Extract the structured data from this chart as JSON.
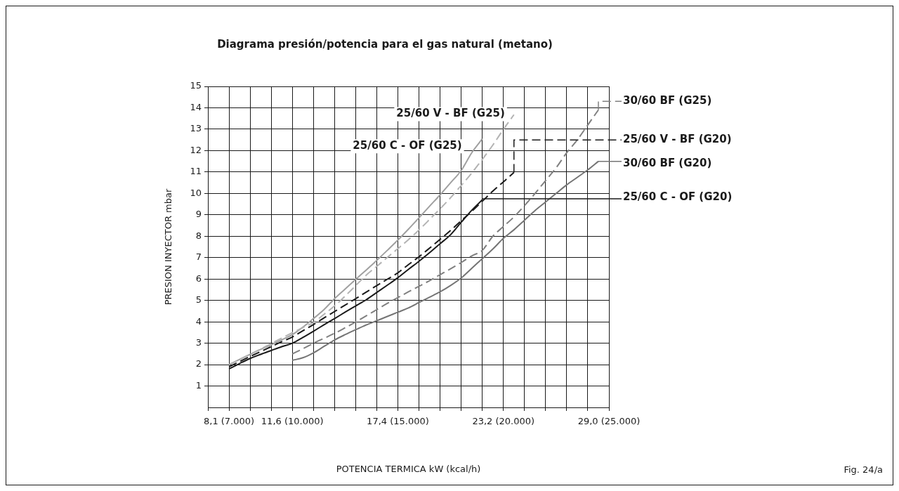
{
  "chart_data": {
    "type": "line",
    "title": "Diagrama presión/potencia para el gas natural (metano)",
    "xlabel": "POTENCIA TERMICA kW (kcal/h)",
    "ylabel": "PRESION INYECTOR mbar",
    "annotations": [
      "Fig. 24/a"
    ],
    "categories": [
      null,
      null,
      "8,1 (7.000)",
      null,
      null,
      null,
      null,
      null,
      "11,6 (10.000)",
      null,
      null,
      null,
      null,
      null,
      null,
      null,
      null,
      null,
      "17,4 (15.000)",
      null,
      null,
      null,
      null,
      null,
      null,
      null,
      null,
      null,
      "23,2 (20.000)",
      null,
      null,
      null,
      null,
      null,
      null,
      null,
      null,
      null,
      "29,0 (25.000)"
    ],
    "ylim": [
      0,
      15
    ],
    "yticks": [
      1,
      2,
      3,
      4,
      5,
      6,
      7,
      8,
      9,
      10,
      11,
      12,
      13,
      14,
      15
    ],
    "grid": true,
    "marker": "none",
    "legend": "right",
    "series": [
      {
        "name": "30/60 BF (G25)",
        "color": "#808080",
        "line_style": "dashed",
        "values": [
          null,
          null,
          null,
          null,
          null,
          null,
          null,
          null,
          2.5,
          2.74,
          3.0,
          3.23,
          3.46,
          3.72,
          3.99,
          4.28,
          4.57,
          4.86,
          5.13,
          5.4,
          5.66,
          5.92,
          6.2,
          6.48,
          6.77,
          7.08,
          7.34,
          8.0,
          8.45,
          8.9,
          9.43,
          10.0,
          10.6,
          11.2,
          11.9,
          12.5,
          13.2,
          13.9,
          null
        ]
      },
      {
        "name": "25/60 V - BF (G20)",
        "color": "#1a1a1a",
        "line_style": "dashed",
        "values": [
          null,
          null,
          1.9,
          2.14,
          2.38,
          2.61,
          2.84,
          3.07,
          3.29,
          3.58,
          3.87,
          4.18,
          4.48,
          4.78,
          5.08,
          5.39,
          5.69,
          5.99,
          6.29,
          6.67,
          7.04,
          7.44,
          7.85,
          8.27,
          8.72,
          9.16,
          9.63,
          10.11,
          10.54,
          10.98,
          null,
          null,
          null,
          null,
          null,
          null,
          null,
          null,
          null
        ]
      },
      {
        "name": "30/60 BF (G20)",
        "color": "#757575",
        "line_style": "solid",
        "values": [
          null,
          null,
          null,
          null,
          null,
          null,
          null,
          null,
          2.2,
          2.32,
          2.55,
          2.85,
          3.15,
          3.4,
          3.63,
          3.85,
          4.05,
          4.25,
          4.45,
          4.65,
          4.9,
          5.15,
          5.4,
          5.7,
          6.05,
          6.5,
          6.95,
          7.4,
          7.9,
          8.3,
          8.75,
          9.2,
          9.6,
          10.0,
          10.4,
          10.75,
          11.1,
          11.5,
          null
        ]
      },
      {
        "name": "25/60 C - OF (G20)",
        "color": "#1a1a1a",
        "line_style": "solid",
        "values": [
          null,
          null,
          1.8,
          2.05,
          2.29,
          2.48,
          2.66,
          2.84,
          3.0,
          3.27,
          3.56,
          3.86,
          4.15,
          4.45,
          4.74,
          5.03,
          5.37,
          5.71,
          6.06,
          6.45,
          6.83,
          7.23,
          7.65,
          8.07,
          8.65,
          9.21,
          9.7,
          null,
          null,
          null,
          null,
          null,
          null,
          null,
          null,
          null,
          null,
          null,
          null
        ]
      },
      {
        "name": "25/60 V - BF (G25)",
        "color": "#b3b3b3",
        "line_style": "dashed",
        "values": [
          null,
          null,
          2.0,
          2.24,
          2.48,
          2.73,
          2.98,
          3.24,
          3.49,
          3.73,
          3.97,
          4.35,
          4.74,
          5.2,
          5.69,
          6.18,
          6.59,
          7.01,
          7.42,
          7.84,
          8.29,
          8.78,
          9.28,
          9.8,
          10.37,
          10.95,
          11.59,
          12.26,
          12.99,
          13.68,
          null,
          null,
          null,
          null,
          null,
          null,
          null,
          null,
          null
        ]
      },
      {
        "name": "25/60 C - OF (G25)",
        "color": "#a0a0a0",
        "line_style": "solid",
        "values": [
          null,
          null,
          2.0,
          2.24,
          2.48,
          2.71,
          2.93,
          3.16,
          3.4,
          3.75,
          4.15,
          4.57,
          5.08,
          5.53,
          5.98,
          6.42,
          6.87,
          7.34,
          7.82,
          8.33,
          8.86,
          9.4,
          9.93,
          10.5,
          11.07,
          11.9,
          12.55,
          null,
          null,
          null,
          null,
          null,
          null,
          null,
          null,
          null,
          null,
          null,
          null
        ]
      }
    ]
  }
}
